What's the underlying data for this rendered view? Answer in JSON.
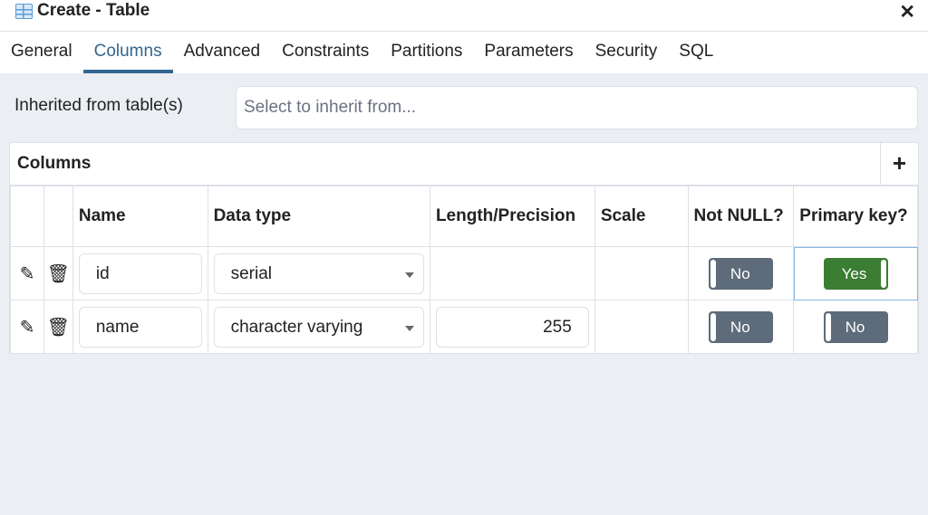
{
  "dialog": {
    "title": "Create - Table",
    "icon": "table-icon",
    "close": "✕"
  },
  "tabs": [
    "General",
    "Columns",
    "Advanced",
    "Constraints",
    "Partitions",
    "Parameters",
    "Security",
    "SQL"
  ],
  "active_tab": "Columns",
  "inherit": {
    "label": "Inherited from table(s)",
    "placeholder": "Select to inherit from..."
  },
  "columns_grid": {
    "title": "Columns",
    "add": "+",
    "headers": [
      "Name",
      "Data type",
      "Length/Precision",
      "Scale",
      "Not NULL?",
      "Primary key?"
    ],
    "rows": [
      {
        "name": "id",
        "data_type": "serial",
        "length": "",
        "scale": "",
        "not_null": "No",
        "primary_key": "Yes"
      },
      {
        "name": "name",
        "data_type": "character varying",
        "length": "255",
        "scale": "",
        "not_null": "No",
        "primary_key": "No"
      }
    ]
  },
  "colors": {
    "accent": "#326690",
    "toggle_off": "#5d6b7a",
    "toggle_on": "#3b7d32"
  }
}
